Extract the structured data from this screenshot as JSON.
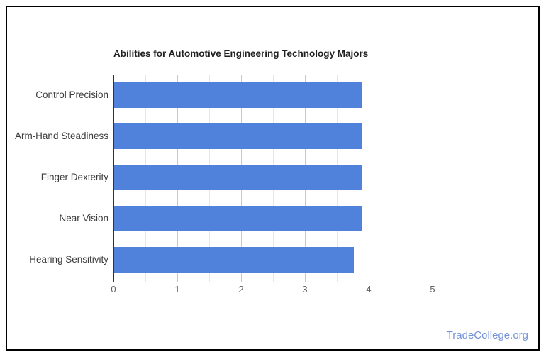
{
  "page": {
    "background": "#ffffff",
    "border_color": "#000000",
    "watermark_label": "TradeCollege.org",
    "watermark_color": "#7493d8"
  },
  "chart_data": {
    "type": "bar",
    "orientation": "horizontal",
    "title": "Abilities for Automotive Engineering Technology Majors",
    "categories": [
      "Control Precision",
      "Arm-Hand Steadiness",
      "Finger Dexterity",
      "Near Vision",
      "Hearing Sensitivity"
    ],
    "values": [
      3.88,
      3.88,
      3.88,
      3.88,
      3.75
    ],
    "xlabel": "",
    "ylabel": "",
    "xlim": [
      0,
      5
    ],
    "x_ticks": [
      0,
      1,
      2,
      3,
      4,
      5
    ],
    "minor_grid_step": 0.5,
    "grid": "vertical",
    "legend_position": "none",
    "bar_color": "#5182db",
    "grid_major_color": "#c8c8c8",
    "grid_minor_color": "#e6e6e6",
    "axis_line_color": "#333333",
    "title_color": "#212121",
    "category_label_color": "#3c3c3c",
    "tick_label_color": "#616161"
  }
}
